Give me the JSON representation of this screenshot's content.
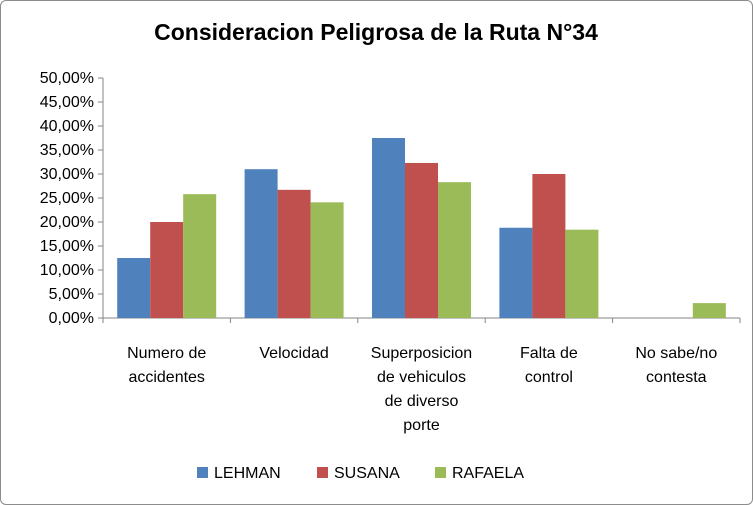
{
  "chart_data": {
    "type": "bar",
    "title": "Consideracion Peligrosa de la Ruta N°34",
    "categories": [
      [
        "Numero de",
        "accidentes"
      ],
      [
        "Velocidad"
      ],
      [
        "Superposicion",
        "de vehiculos",
        "de diverso",
        "porte"
      ],
      [
        "Falta de",
        "control"
      ],
      [
        "No sabe/no",
        "contesta"
      ]
    ],
    "series": [
      {
        "name": "LEHMAN",
        "color": "#4f81bd",
        "values": [
          12.5,
          31.0,
          37.5,
          18.8,
          0.0
        ]
      },
      {
        "name": "SUSANA",
        "color": "#c0504d",
        "values": [
          20.0,
          26.7,
          32.3,
          30.0,
          0.0
        ]
      },
      {
        "name": "RAFAELA",
        "color": "#9bbb59",
        "values": [
          25.8,
          24.1,
          28.3,
          18.4,
          3.1
        ]
      }
    ],
    "y_ticks": [
      "0,00%",
      "5,00%",
      "10,00%",
      "15,00%",
      "20,00%",
      "25,00%",
      "30,00%",
      "35,00%",
      "40,00%",
      "45,00%",
      "50,00%"
    ],
    "ylim": [
      0,
      50
    ],
    "grid": false,
    "legend_position": "bottom"
  }
}
